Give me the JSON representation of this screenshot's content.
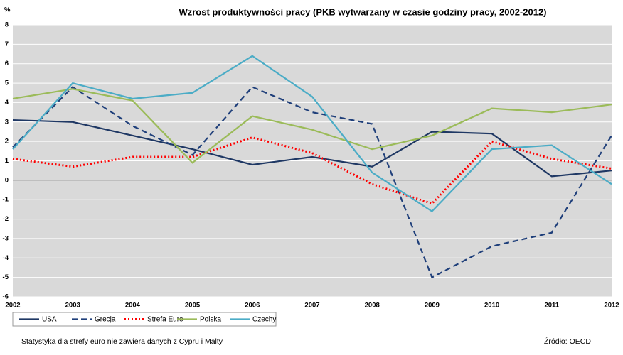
{
  "chart_data": {
    "type": "line",
    "title": "Wzrost produktywności pracy (PKB wytwarzany w czasie godziny pracy, 2002-2012)",
    "y_label": "%",
    "categories": [
      "2002",
      "2003",
      "2004",
      "2005",
      "2006",
      "2007",
      "2008",
      "2009",
      "2010",
      "2011",
      "2012"
    ],
    "series": [
      {
        "name": "USA",
        "color": "#1f3864",
        "style": "solid",
        "values": [
          3.1,
          3.0,
          2.3,
          1.6,
          0.8,
          1.2,
          0.7,
          2.5,
          2.4,
          0.2,
          0.5
        ]
      },
      {
        "name": "Grecja",
        "color": "#1f3f7a",
        "style": "dashed",
        "values": [
          1.7,
          4.8,
          2.8,
          1.3,
          4.8,
          3.5,
          2.9,
          -5.0,
          -3.4,
          -2.7,
          2.3
        ]
      },
      {
        "name": "Strefa Euro",
        "color": "#ff0000",
        "style": "dotted",
        "values": [
          1.1,
          0.7,
          1.2,
          1.2,
          2.2,
          1.4,
          -0.2,
          -1.2,
          2.0,
          1.1,
          0.6
        ]
      },
      {
        "name": "Polska",
        "color": "#9bbb59",
        "style": "solid",
        "values": [
          4.2,
          4.7,
          4.1,
          0.9,
          3.3,
          2.6,
          1.6,
          2.3,
          3.7,
          3.5,
          3.9
        ]
      },
      {
        "name": "Czechy",
        "color": "#4bacc6",
        "style": "solid",
        "values": [
          1.6,
          5.0,
          4.2,
          4.5,
          6.4,
          4.3,
          0.4,
          -1.6,
          1.6,
          1.8,
          -0.2
        ]
      }
    ],
    "ylim": [
      -6,
      8
    ],
    "yticks": [
      -6,
      -5,
      -4,
      -3,
      -2,
      -1,
      0,
      1,
      2,
      3,
      4,
      5,
      6,
      7,
      8
    ],
    "grid": true,
    "note": "Statystyka dla strefy euro nie zawiera danych z Cypru i Malty",
    "source": "Źródło: OECD"
  }
}
